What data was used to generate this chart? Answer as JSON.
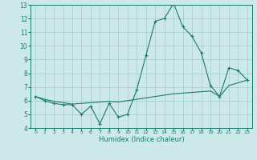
{
  "xlabel": "Humidex (Indice chaleur)",
  "x_values": [
    0,
    1,
    2,
    3,
    4,
    5,
    6,
    7,
    8,
    9,
    10,
    11,
    12,
    13,
    14,
    15,
    16,
    17,
    18,
    19,
    20,
    21,
    22,
    23
  ],
  "y_main": [
    6.3,
    6.0,
    5.8,
    5.7,
    5.7,
    5.0,
    5.6,
    4.3,
    5.8,
    4.8,
    5.0,
    6.8,
    9.3,
    11.8,
    12.0,
    13.1,
    11.4,
    10.7,
    9.5,
    7.1,
    6.3,
    8.4,
    8.2,
    7.5
  ],
  "y_trend": [
    6.3,
    6.1,
    5.95,
    5.85,
    5.75,
    5.8,
    5.85,
    5.9,
    5.95,
    5.9,
    6.0,
    6.1,
    6.2,
    6.3,
    6.4,
    6.5,
    6.55,
    6.6,
    6.65,
    6.7,
    6.3,
    7.1,
    7.3,
    7.5
  ],
  "ylim": [
    4,
    13
  ],
  "xlim": [
    -0.5,
    23.5
  ],
  "yticks": [
    4,
    5,
    6,
    7,
    8,
    9,
    10,
    11,
    12,
    13
  ],
  "xticks": [
    0,
    1,
    2,
    3,
    4,
    5,
    6,
    7,
    8,
    9,
    10,
    11,
    12,
    13,
    14,
    15,
    16,
    17,
    18,
    19,
    20,
    21,
    22,
    23
  ],
  "line_color": "#1a7a6e",
  "bg_color": "#cce8e8",
  "grid_color": "#a0cccc"
}
